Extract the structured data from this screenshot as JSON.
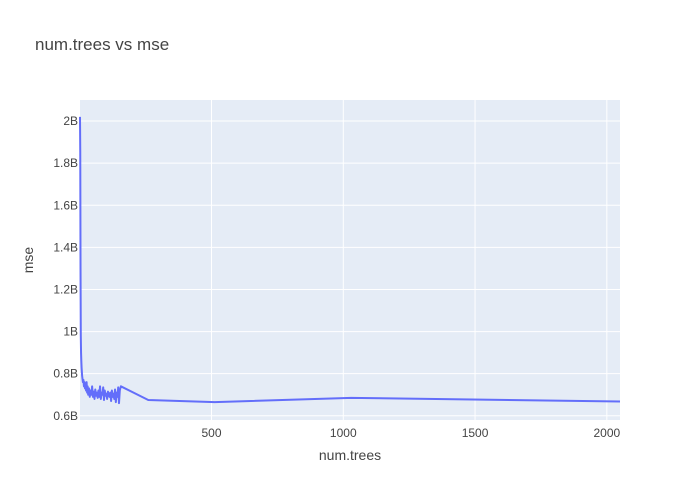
{
  "chart_data": {
    "type": "line",
    "title": "num.trees vs mse",
    "xlabel": "num.trees",
    "ylabel": "mse",
    "xlim": [
      1,
      2050
    ],
    "ylim": [
      580000000,
      2100000000
    ],
    "x_ticks": [
      500,
      1000,
      1500,
      2000
    ],
    "x_tick_labels": [
      "500",
      "1000",
      "1500",
      "2000"
    ],
    "y_ticks": [
      600000000,
      800000000,
      1000000000,
      1200000000,
      1400000000,
      1600000000,
      1800000000,
      2000000000
    ],
    "y_tick_labels": [
      "0.6B",
      "0.8B",
      "1B",
      "1.2B",
      "1.4B",
      "1.6B",
      "1.8B",
      "2B"
    ],
    "grid": true,
    "plot_background": "#E5ECF6",
    "series": [
      {
        "color": "#636EFA",
        "x": [
          1,
          2,
          3,
          4,
          5,
          6,
          7,
          8,
          9,
          10,
          12,
          14,
          16,
          18,
          20,
          22,
          24,
          26,
          28,
          30,
          32,
          35,
          38,
          41,
          44,
          47,
          50,
          53,
          56,
          59,
          62,
          65,
          68,
          71,
          74,
          77,
          80,
          83,
          86,
          89,
          92,
          95,
          98,
          101,
          104,
          107,
          110,
          113,
          116,
          119,
          122,
          125,
          128,
          131,
          134,
          137,
          140,
          143,
          146,
          149,
          152,
          156,
          260,
          512,
          1030,
          2050
        ],
        "y": [
          2020000000,
          1850000000,
          1300000000,
          980000000,
          900000000,
          860000000,
          830000000,
          810000000,
          790000000,
          780000000,
          760000000,
          770000000,
          740000000,
          760000000,
          730000000,
          750000000,
          720000000,
          760000000,
          710000000,
          740000000,
          700000000,
          730000000,
          690000000,
          720000000,
          700000000,
          740000000,
          690000000,
          715000000,
          680000000,
          725000000,
          695000000,
          710000000,
          685000000,
          720000000,
          690000000,
          740000000,
          680000000,
          710000000,
          700000000,
          735000000,
          675000000,
          720000000,
          695000000,
          705000000,
          680000000,
          715000000,
          700000000,
          690000000,
          710000000,
          670000000,
          720000000,
          690000000,
          705000000,
          680000000,
          725000000,
          665000000,
          710000000,
          690000000,
          735000000,
          660000000,
          720000000,
          740000000,
          675000000,
          665000000,
          685000000,
          668000000
        ]
      }
    ]
  }
}
